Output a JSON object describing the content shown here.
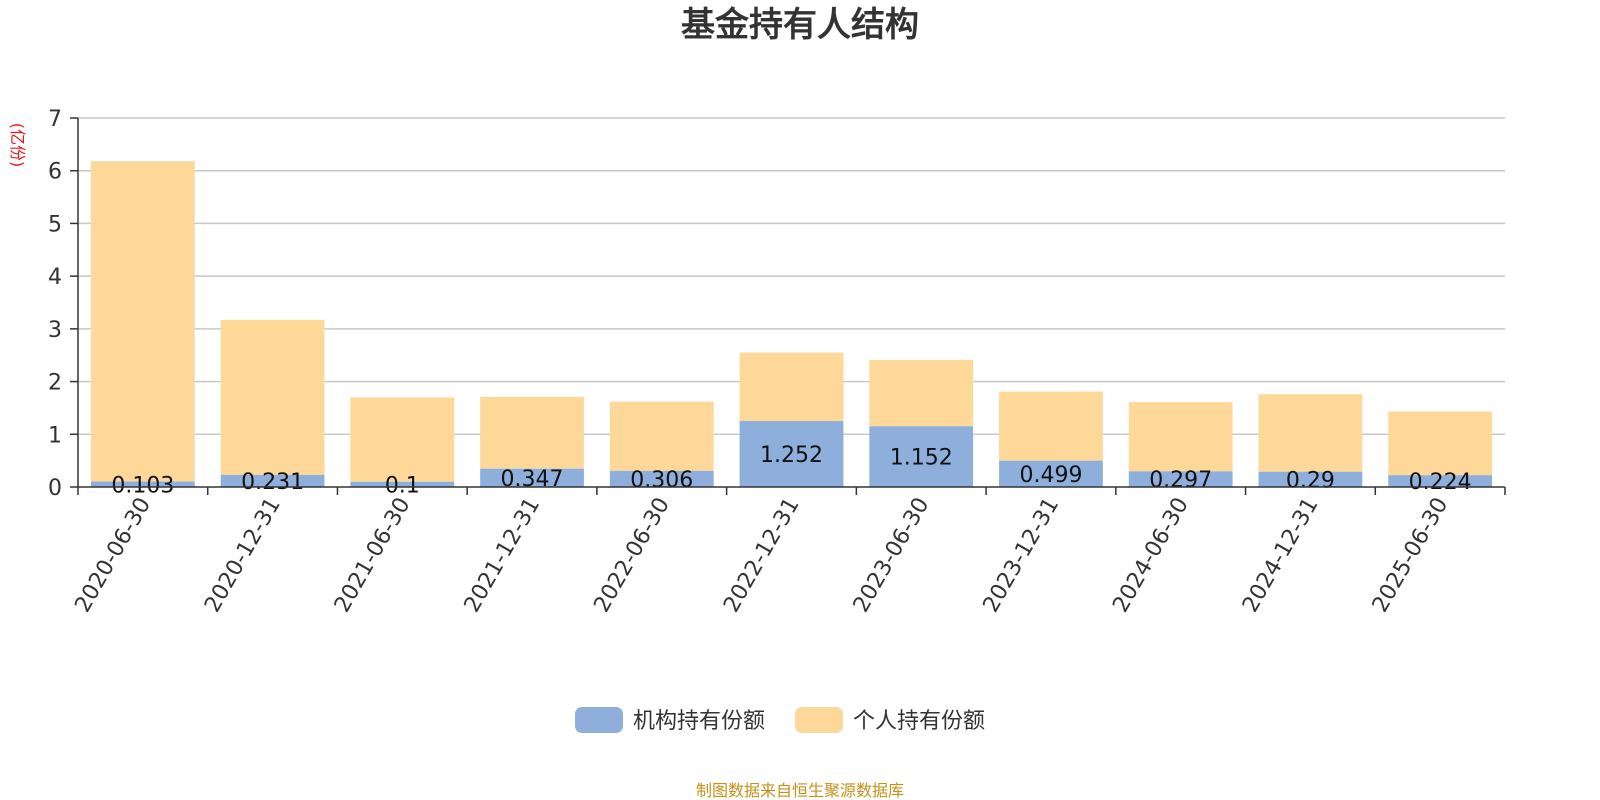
{
  "chart_data": {
    "type": "bar",
    "stacked": true,
    "title": "基金持有人结构",
    "ylabel": "(亿份)",
    "ylim": [
      0,
      7
    ],
    "yticks": [
      0,
      1,
      2,
      3,
      4,
      5,
      6,
      7
    ],
    "categories": [
      "2020-06-30",
      "2020-12-31",
      "2021-06-30",
      "2021-12-31",
      "2022-06-30",
      "2022-12-31",
      "2023-06-30",
      "2023-12-31",
      "2024-06-30",
      "2024-12-31",
      "2025-06-30"
    ],
    "series": [
      {
        "name": "机构持有份额",
        "color": "#8eaedb",
        "values": [
          0.103,
          0.231,
          0.1,
          0.347,
          0.306,
          1.252,
          1.152,
          0.499,
          0.297,
          0.29,
          0.224
        ],
        "labels": [
          "0.103",
          "0.231",
          "0.1",
          "0.347",
          "0.306",
          "1.252",
          "1.152",
          "0.499",
          "0.297",
          "0.29",
          "0.224"
        ]
      },
      {
        "name": "个人持有份额",
        "color": "#fdd899",
        "values": [
          6.077,
          2.939,
          1.6,
          1.363,
          1.314,
          1.298,
          1.258,
          1.311,
          1.313,
          1.47,
          1.206
        ]
      }
    ],
    "grid": true,
    "legend": "bottom-center"
  },
  "footer": {
    "source": "制图数据来自恒生聚源数据库"
  }
}
